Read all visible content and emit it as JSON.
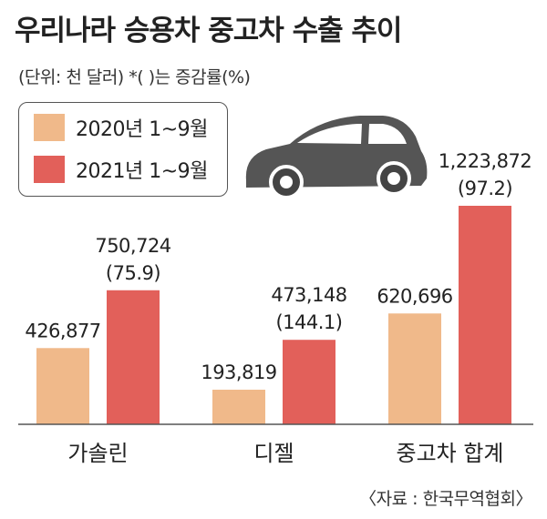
{
  "title": "우리나라 승용차 중고차 수출 추이",
  "unit_note": "(단위: 천 달러)  *(    )는 증감률(%)",
  "source": "〈자료 : 한국무역협회〉",
  "chart_data": {
    "type": "bar",
    "categories": [
      "가솔린",
      "디젤",
      "중고차 합계"
    ],
    "series": [
      {
        "name": "2020년 1~9월",
        "color": "#f0b98a",
        "values": [
          426877,
          193819,
          620696
        ],
        "labels": [
          "426,877",
          "193,819",
          "620,696"
        ]
      },
      {
        "name": "2021년 1~9월",
        "color": "#e2605a",
        "values": [
          750724,
          473148,
          1223872
        ],
        "labels": [
          "750,724",
          "473,148",
          "1,223,872"
        ],
        "change": [
          "(75.9)",
          "(144.1)",
          "(97.2)"
        ]
      }
    ],
    "legend_position": "top-left",
    "grid": false
  },
  "car": {
    "icon": "car-icon",
    "color": "#555555"
  }
}
